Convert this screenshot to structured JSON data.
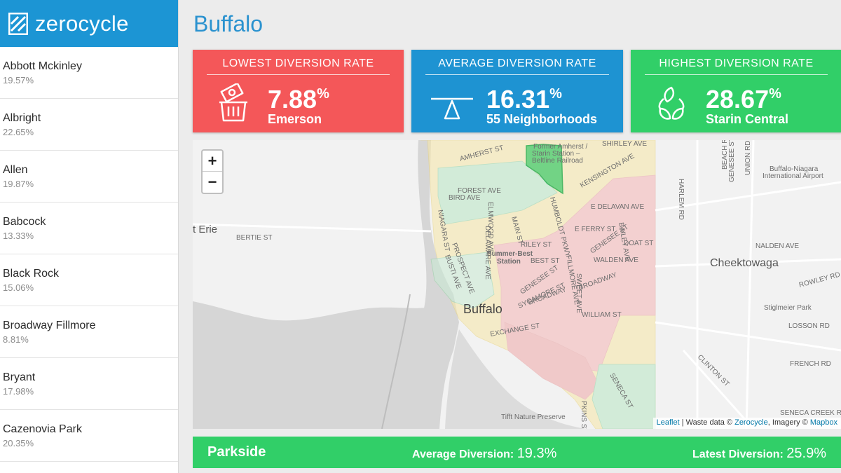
{
  "brand": {
    "name": "zerocycle",
    "logo_icon": "zerocycle-logo-icon"
  },
  "sidebar": {
    "items": [
      {
        "name": "Abbott Mckinley",
        "rate": "19.57%"
      },
      {
        "name": "Albright",
        "rate": "22.65%"
      },
      {
        "name": "Allen",
        "rate": "19.87%"
      },
      {
        "name": "Babcock",
        "rate": "13.33%"
      },
      {
        "name": "Black Rock",
        "rate": "15.06%"
      },
      {
        "name": "Broadway Fillmore",
        "rate": "8.81%"
      },
      {
        "name": "Bryant",
        "rate": "17.98%"
      },
      {
        "name": "Cazenovia Park",
        "rate": "20.35%"
      }
    ]
  },
  "page": {
    "title": "Buffalo"
  },
  "cards": {
    "lowest": {
      "label": "LOWEST DIVERSION RATE",
      "value": "7.88",
      "unit": "%",
      "sub": "Emerson",
      "icon": "money-trash-icon",
      "color": "#f45759"
    },
    "average": {
      "label": "AVERAGE DIVERSION RATE",
      "value": "16.31",
      "unit": "%",
      "sub": "55 Neighborhoods",
      "icon": "balance-scale-icon",
      "color": "#1e93d2"
    },
    "highest": {
      "label": "HIGHEST DIVERSION RATE",
      "value": "28.67",
      "unit": "%",
      "sub": "Starin Central",
      "icon": "recycle-leaves-icon",
      "color": "#31cf68"
    }
  },
  "map": {
    "zoom_in": "+",
    "zoom_out": "−",
    "labels": {
      "buffalo": "Buffalo",
      "cheektowaga": "Cheektowaga",
      "erie": "t Erie",
      "airport_1": "Buffalo-Niagara",
      "airport_2": "International Airport",
      "former_1": "Former Amherst /",
      "former_2": "Starin Station –",
      "former_3": "Beltline Railroad",
      "shirley": "SHIRLEY AVE",
      "kensington": "KENSINGTON AVE",
      "forest": "FOREST AVE",
      "bird": "BIRD AVE",
      "bertie": "BERTIE ST",
      "delavan": "E DELAVAN AVE",
      "ferry": "E FERRY ST",
      "riley": "RILEY ST",
      "best": "BEST ST",
      "doat": "DOAT ST",
      "walden": "WALDEN AVE",
      "broadway": "BROADWAY",
      "broadway2": "BROADWAY",
      "william": "WILLIAM ST",
      "genesee": "GENESEE ST",
      "genesee2": "GENESEE ST",
      "sycamore": "SYCAMORE ST",
      "fillmore": "FILLMORE AVE",
      "humboldt": "HUMBOLDT PKWY",
      "bailey": "BAILEY AVE",
      "main": "MAIN ST",
      "delaware": "DELAWARE AVE",
      "elmwood": "ELMWOOD AVE",
      "niagara": "NIAGARA ST",
      "prospect": "PROSPECT AVE",
      "busti": "BUSTI AVE",
      "exchange": "EXCHANGE ST",
      "summer_1": "Summer-Best",
      "summer_2": "Station",
      "amherst": "AMHERST ST",
      "nalden": "NALDEN AVE",
      "rowley": "ROWLEY RD",
      "stiglmeier": "Stiglmeier Park",
      "losson": "LOSSON RD",
      "french": "FRENCH RD",
      "clinton": "CLINTON ST",
      "seneca_creek": "SENECA CREEK RD",
      "seneca": "SENECA ST",
      "tifft": "Tifft Nature Preserve",
      "harlem": "HARLEM RD",
      "beach": "BEACH RD",
      "genesee_v": "GENESEE ST",
      "union": "UNION RD",
      "pkins": "PKINS ST",
      "sweet": "SWEET AVE"
    },
    "attribution": {
      "leaflet": "Leaflet",
      "sep1": " | Waste data © ",
      "zerocycle": "Zerocycle",
      "sep2": ", Imagery © ",
      "mapbox": "Mapbox"
    }
  },
  "detail": {
    "name": "Parkside",
    "avg_label": "Average Diversion: ",
    "avg_value": "19.3%",
    "latest_label": "Latest Diversion: ",
    "latest_value": "25.9%"
  }
}
